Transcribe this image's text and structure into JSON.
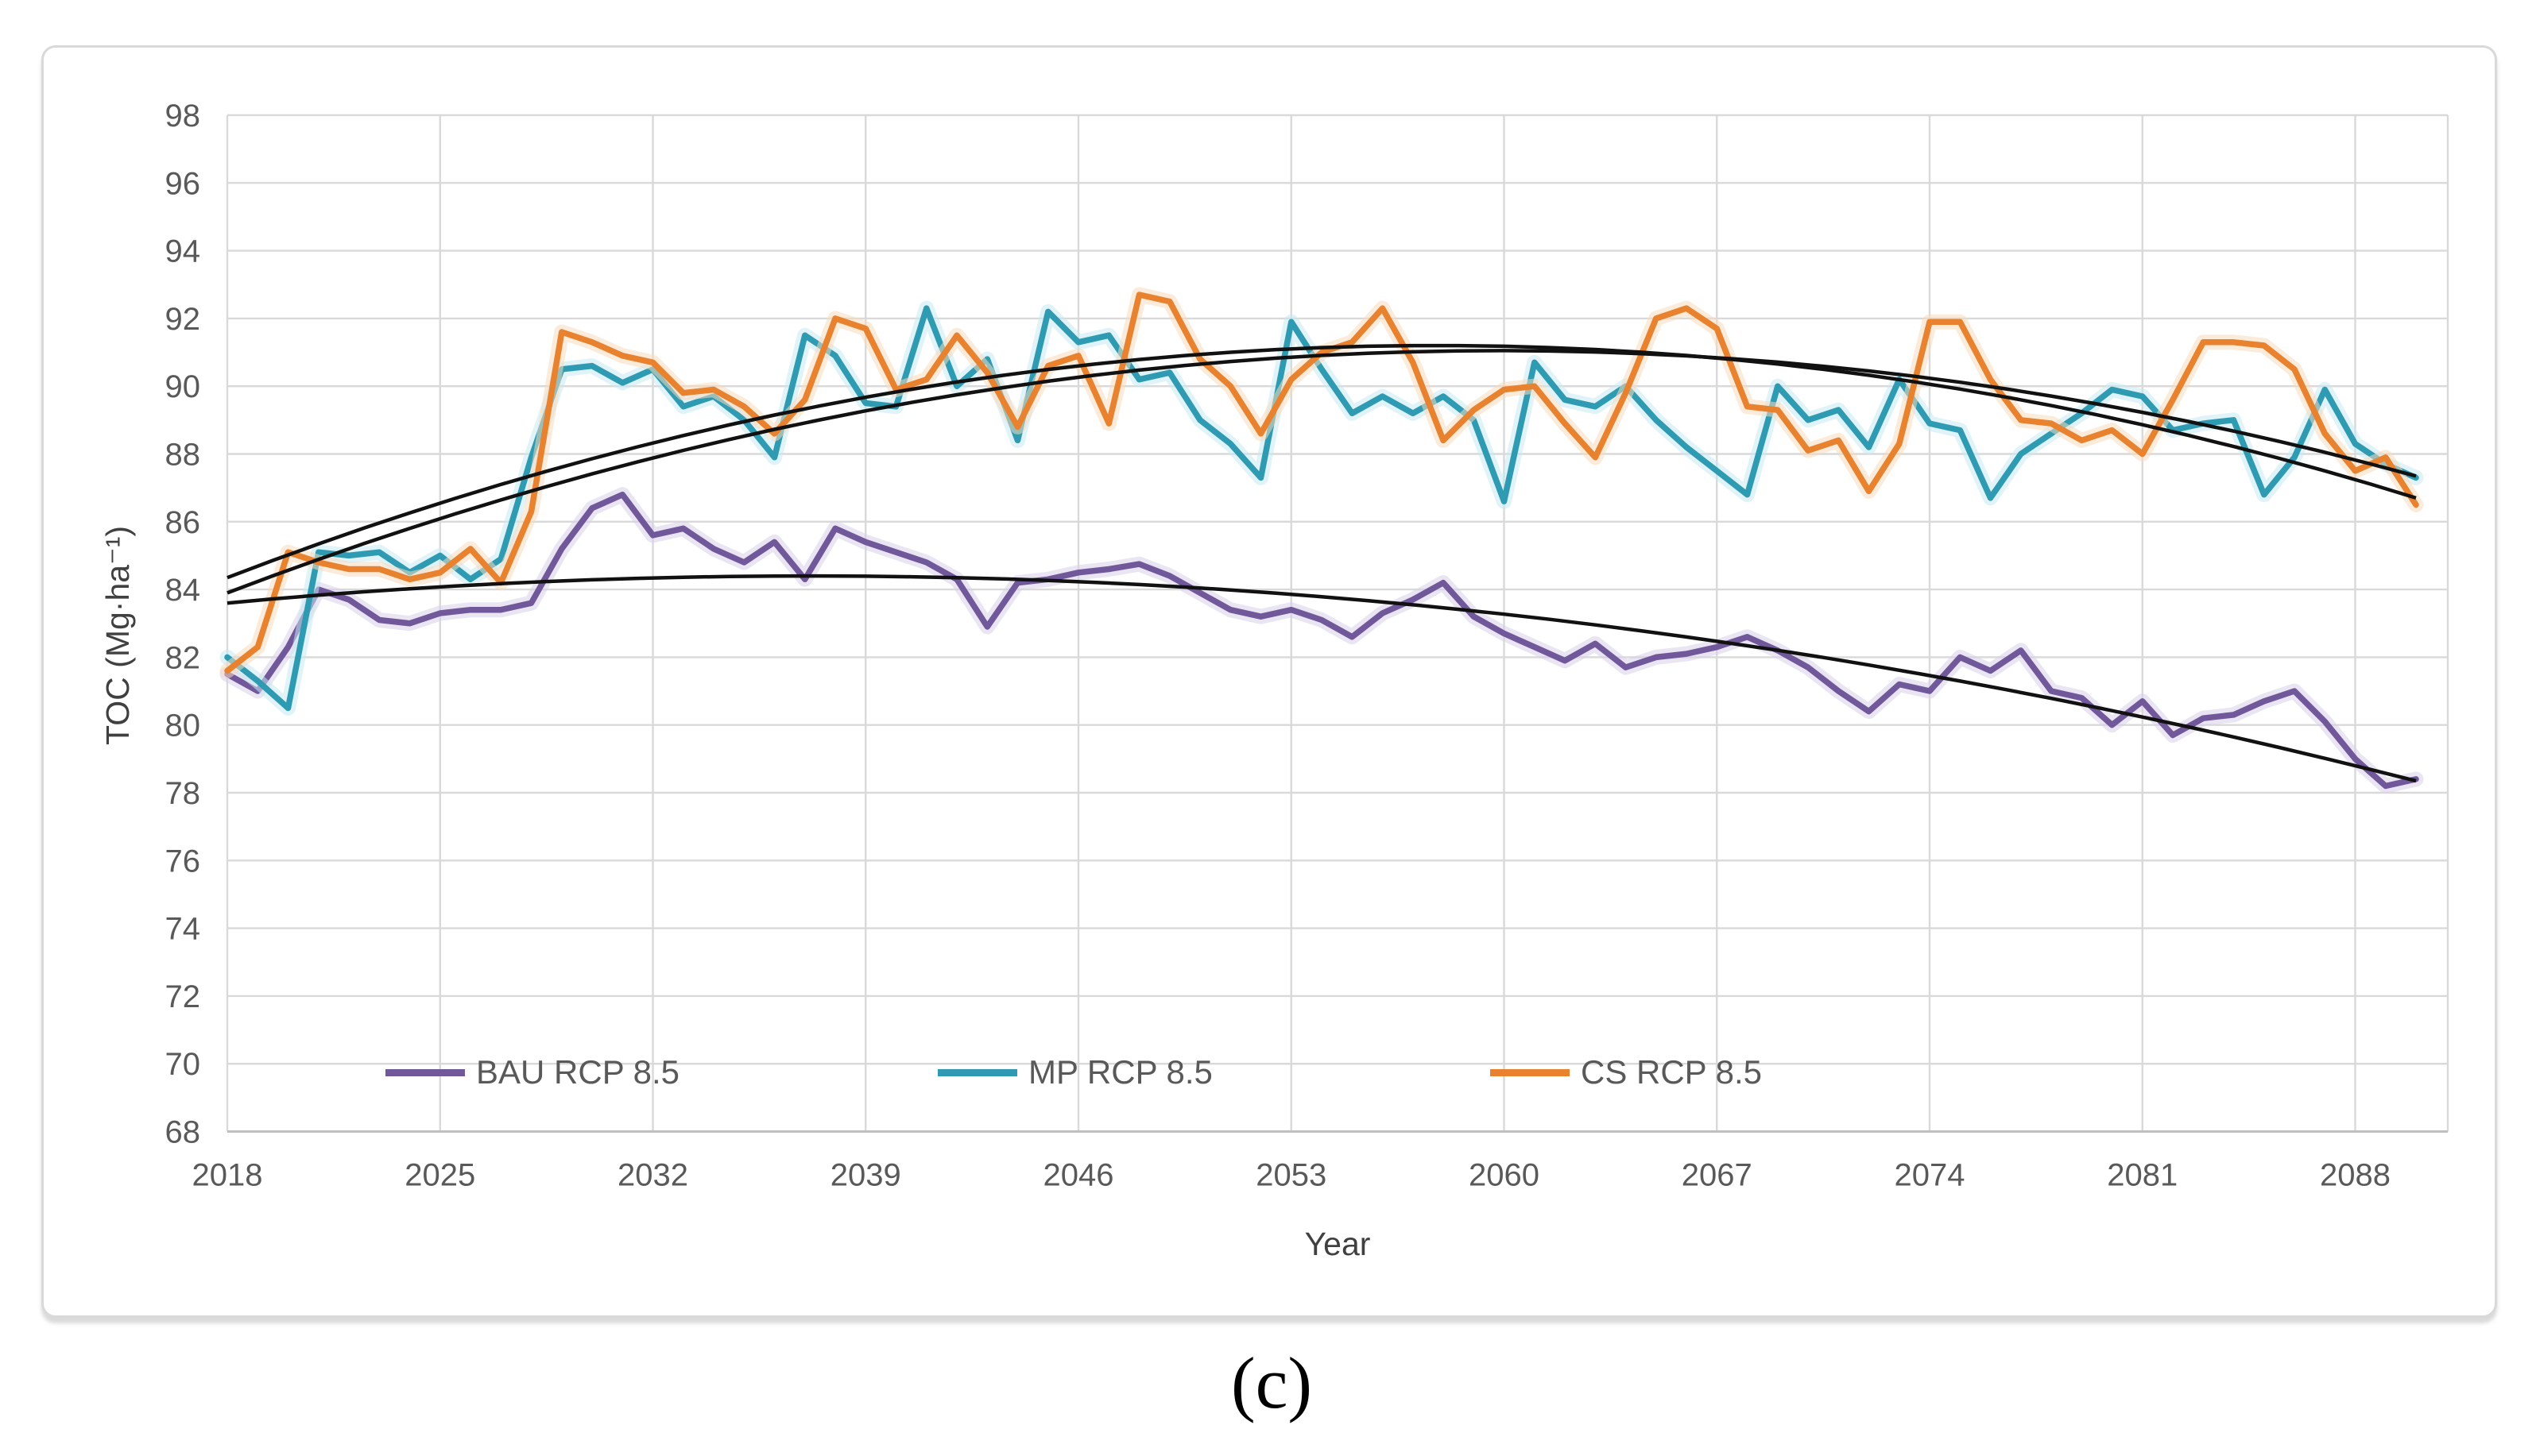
{
  "page": {
    "caption": "(c)"
  },
  "chart_data": {
    "type": "line",
    "title": "",
    "xlabel": "Year",
    "ylabel": "TOC (Mg·ha⁻¹)",
    "ylim": [
      68,
      98
    ],
    "ytick_step": 2,
    "x_start_year": 2018,
    "x_end_year": 2090,
    "xticks": [
      2018,
      2025,
      2032,
      2039,
      2046,
      2053,
      2060,
      2067,
      2074,
      2081,
      2088
    ],
    "grid": true,
    "legend_position": "bottom-inside",
    "colors": {
      "grid": "#D9D9D9",
      "axis_line": "#BFBFBF",
      "axis_text": "#595959",
      "trendline": "#111111"
    },
    "series": [
      {
        "name": "BAU RCP 8.5",
        "color": "#71589A",
        "halo": "#D9CFE8",
        "values": [
          81.5,
          81.0,
          82.3,
          84.0,
          83.7,
          83.1,
          83.0,
          83.3,
          83.4,
          83.4,
          83.6,
          85.2,
          86.4,
          86.8,
          85.6,
          85.8,
          85.2,
          84.8,
          85.4,
          84.3,
          85.8,
          85.4,
          85.1,
          84.8,
          84.3,
          82.9,
          84.2,
          84.3,
          84.5,
          84.6,
          84.75,
          84.4,
          83.9,
          83.4,
          83.2,
          83.4,
          83.1,
          82.6,
          83.3,
          83.7,
          84.2,
          83.2,
          82.7,
          82.3,
          81.9,
          82.4,
          81.7,
          82.0,
          82.1,
          82.3,
          82.6,
          82.2,
          81.7,
          81.0,
          80.4,
          81.2,
          81.0,
          82.0,
          81.6,
          82.2,
          81.0,
          80.8,
          80.0,
          80.7,
          79.7,
          80.2,
          80.3,
          80.7,
          81.0,
          80.1,
          79.0,
          78.2,
          78.4
        ]
      },
      {
        "name": "MP RCP 8.5",
        "color": "#2E9BB3",
        "halo": "#C5E9F2",
        "values": [
          82.0,
          81.3,
          80.5,
          85.1,
          85.0,
          85.1,
          84.5,
          85.0,
          84.3,
          84.9,
          87.9,
          90.5,
          90.6,
          90.1,
          90.5,
          89.4,
          89.7,
          89.0,
          87.9,
          91.5,
          90.9,
          89.5,
          89.4,
          92.3,
          90.0,
          90.8,
          88.4,
          92.2,
          91.3,
          91.5,
          90.2,
          90.4,
          89.0,
          88.3,
          87.3,
          91.9,
          90.5,
          89.2,
          89.7,
          89.2,
          89.7,
          89.0,
          86.6,
          90.7,
          89.6,
          89.4,
          90.0,
          89.0,
          88.2,
          87.5,
          86.8,
          90.0,
          89.0,
          89.3,
          88.2,
          90.2,
          88.9,
          88.7,
          86.7,
          88.0,
          88.6,
          89.2,
          89.9,
          89.7,
          88.7,
          88.9,
          89.0,
          86.8,
          87.9,
          89.9,
          88.3,
          87.7,
          87.3
        ]
      },
      {
        "name": "CS RCP 8.5",
        "color": "#E8822E",
        "halo": "#F8DBBE",
        "values": [
          81.6,
          82.3,
          85.1,
          84.8,
          84.6,
          84.6,
          84.3,
          84.5,
          85.2,
          84.2,
          86.3,
          91.6,
          91.3,
          90.9,
          90.7,
          89.8,
          89.9,
          89.4,
          88.6,
          89.6,
          92.0,
          91.7,
          89.9,
          90.2,
          91.5,
          90.4,
          88.8,
          90.6,
          90.9,
          88.9,
          92.7,
          92.5,
          90.8,
          90.0,
          88.6,
          90.2,
          91.0,
          91.3,
          92.3,
          90.7,
          88.4,
          89.3,
          89.9,
          90.0,
          88.9,
          87.9,
          89.8,
          92.0,
          92.3,
          91.7,
          89.4,
          89.3,
          88.1,
          88.4,
          86.9,
          88.3,
          91.9,
          91.9,
          90.2,
          89.0,
          88.9,
          88.4,
          88.7,
          88.0,
          89.6,
          91.3,
          91.3,
          91.2,
          90.5,
          88.6,
          87.5,
          87.9,
          86.5
        ]
      }
    ],
    "trendlines": [
      {
        "series": "BAU RCP 8.5",
        "type": "polynomial2",
        "c0": 83.6,
        "c1": 0.0833,
        "c2": -0.00217
      },
      {
        "series": "MP RCP 8.5",
        "type": "polynomial2",
        "c0": 83.9,
        "c1": 0.3415,
        "c2": -0.004078
      },
      {
        "series": "CS RCP 8.5",
        "type": "polynomial2",
        "c0": 84.35,
        "c1": 0.3445,
        "c2": -0.004331
      }
    ]
  }
}
